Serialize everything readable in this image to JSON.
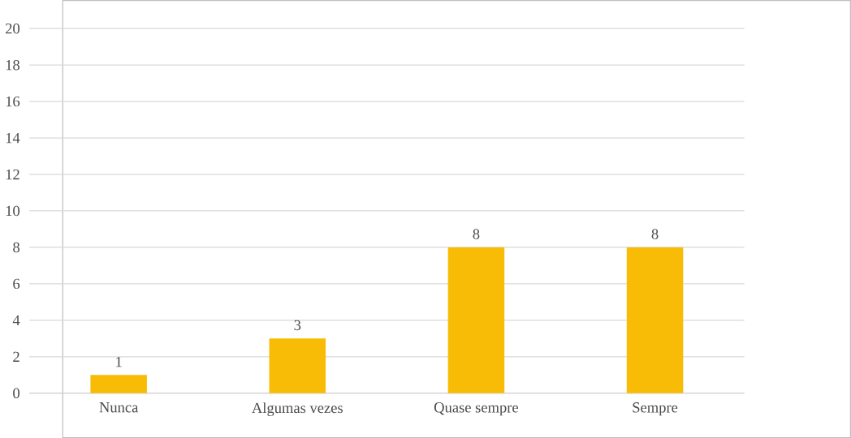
{
  "chart_data": {
    "type": "bar",
    "categories": [
      "Nunca",
      "Algumas vezes",
      "Quase sempre",
      "Sempre"
    ],
    "values": [
      1,
      3,
      8,
      8
    ],
    "color": "#f9bc06",
    "ylim": [
      0,
      20
    ],
    "yticks": [
      0,
      2,
      4,
      6,
      8,
      10,
      12,
      14,
      16,
      18,
      20
    ],
    "grid": "y",
    "data_labels": true
  }
}
